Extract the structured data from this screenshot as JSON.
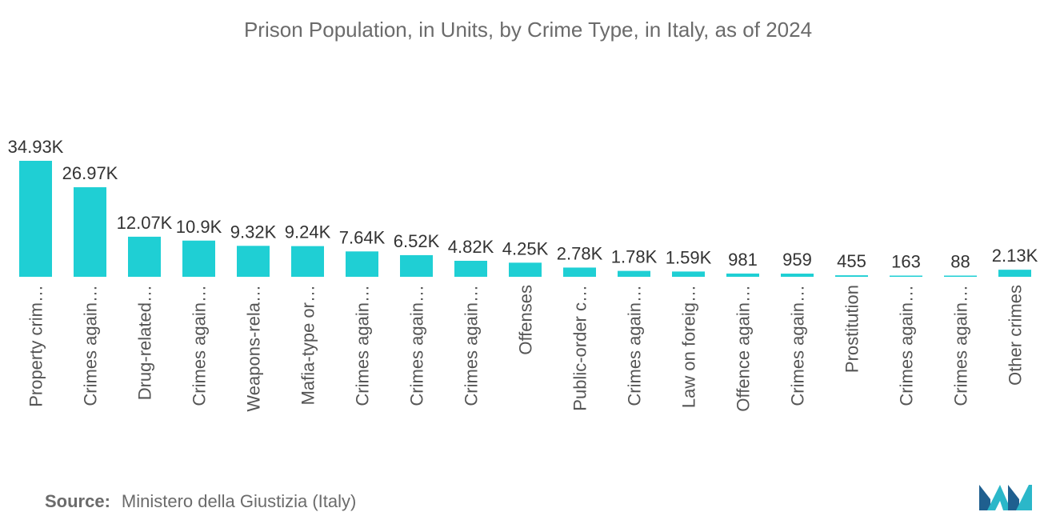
{
  "title": "Prison Population, in Units, by Crime Type, in Italy, as of 2024",
  "source": {
    "label": "Source:",
    "text": "Ministero della Giustizia (Italy)"
  },
  "colors": {
    "bar": "#1fcfd4",
    "logo_dark": "#1f5f8f",
    "logo_light": "#2bb7c9"
  },
  "logo": {
    "icon": "mordor-intelligence-logo"
  },
  "chart_data": {
    "type": "bar",
    "title": "Prison Population, in Units, by Crime Type, in Italy, as of 2024",
    "xlabel": "",
    "ylabel": "",
    "grid": false,
    "legend": "none",
    "ylim": [
      0,
      36000
    ],
    "categories": [
      "Property crim…",
      "Crimes again…",
      "Drug-related…",
      "Crimes again…",
      "Weapons-rela…",
      "Mafia-type or…",
      "Crimes again…",
      "Crimes again…",
      "Crimes again…",
      "Offenses",
      "Public-order c…",
      "Crimes again…",
      "Law on foreig…",
      "Offence again…",
      "Crimes again…",
      "Prostitution",
      "Crimes again…",
      "Crimes again…",
      "Other crimes"
    ],
    "values": [
      34930,
      26970,
      12070,
      10900,
      9320,
      9240,
      7640,
      6520,
      4820,
      4250,
      2780,
      1780,
      1590,
      981,
      959,
      455,
      163,
      88,
      2130
    ],
    "data_labels": [
      "34.93K",
      "26.97K",
      "12.07K",
      "10.9K",
      "9.32K",
      "9.24K",
      "7.64K",
      "6.52K",
      "4.82K",
      "4.25K",
      "2.78K",
      "1.78K",
      "1.59K",
      "981",
      "959",
      "455",
      "163",
      "88",
      "2.13K"
    ]
  }
}
